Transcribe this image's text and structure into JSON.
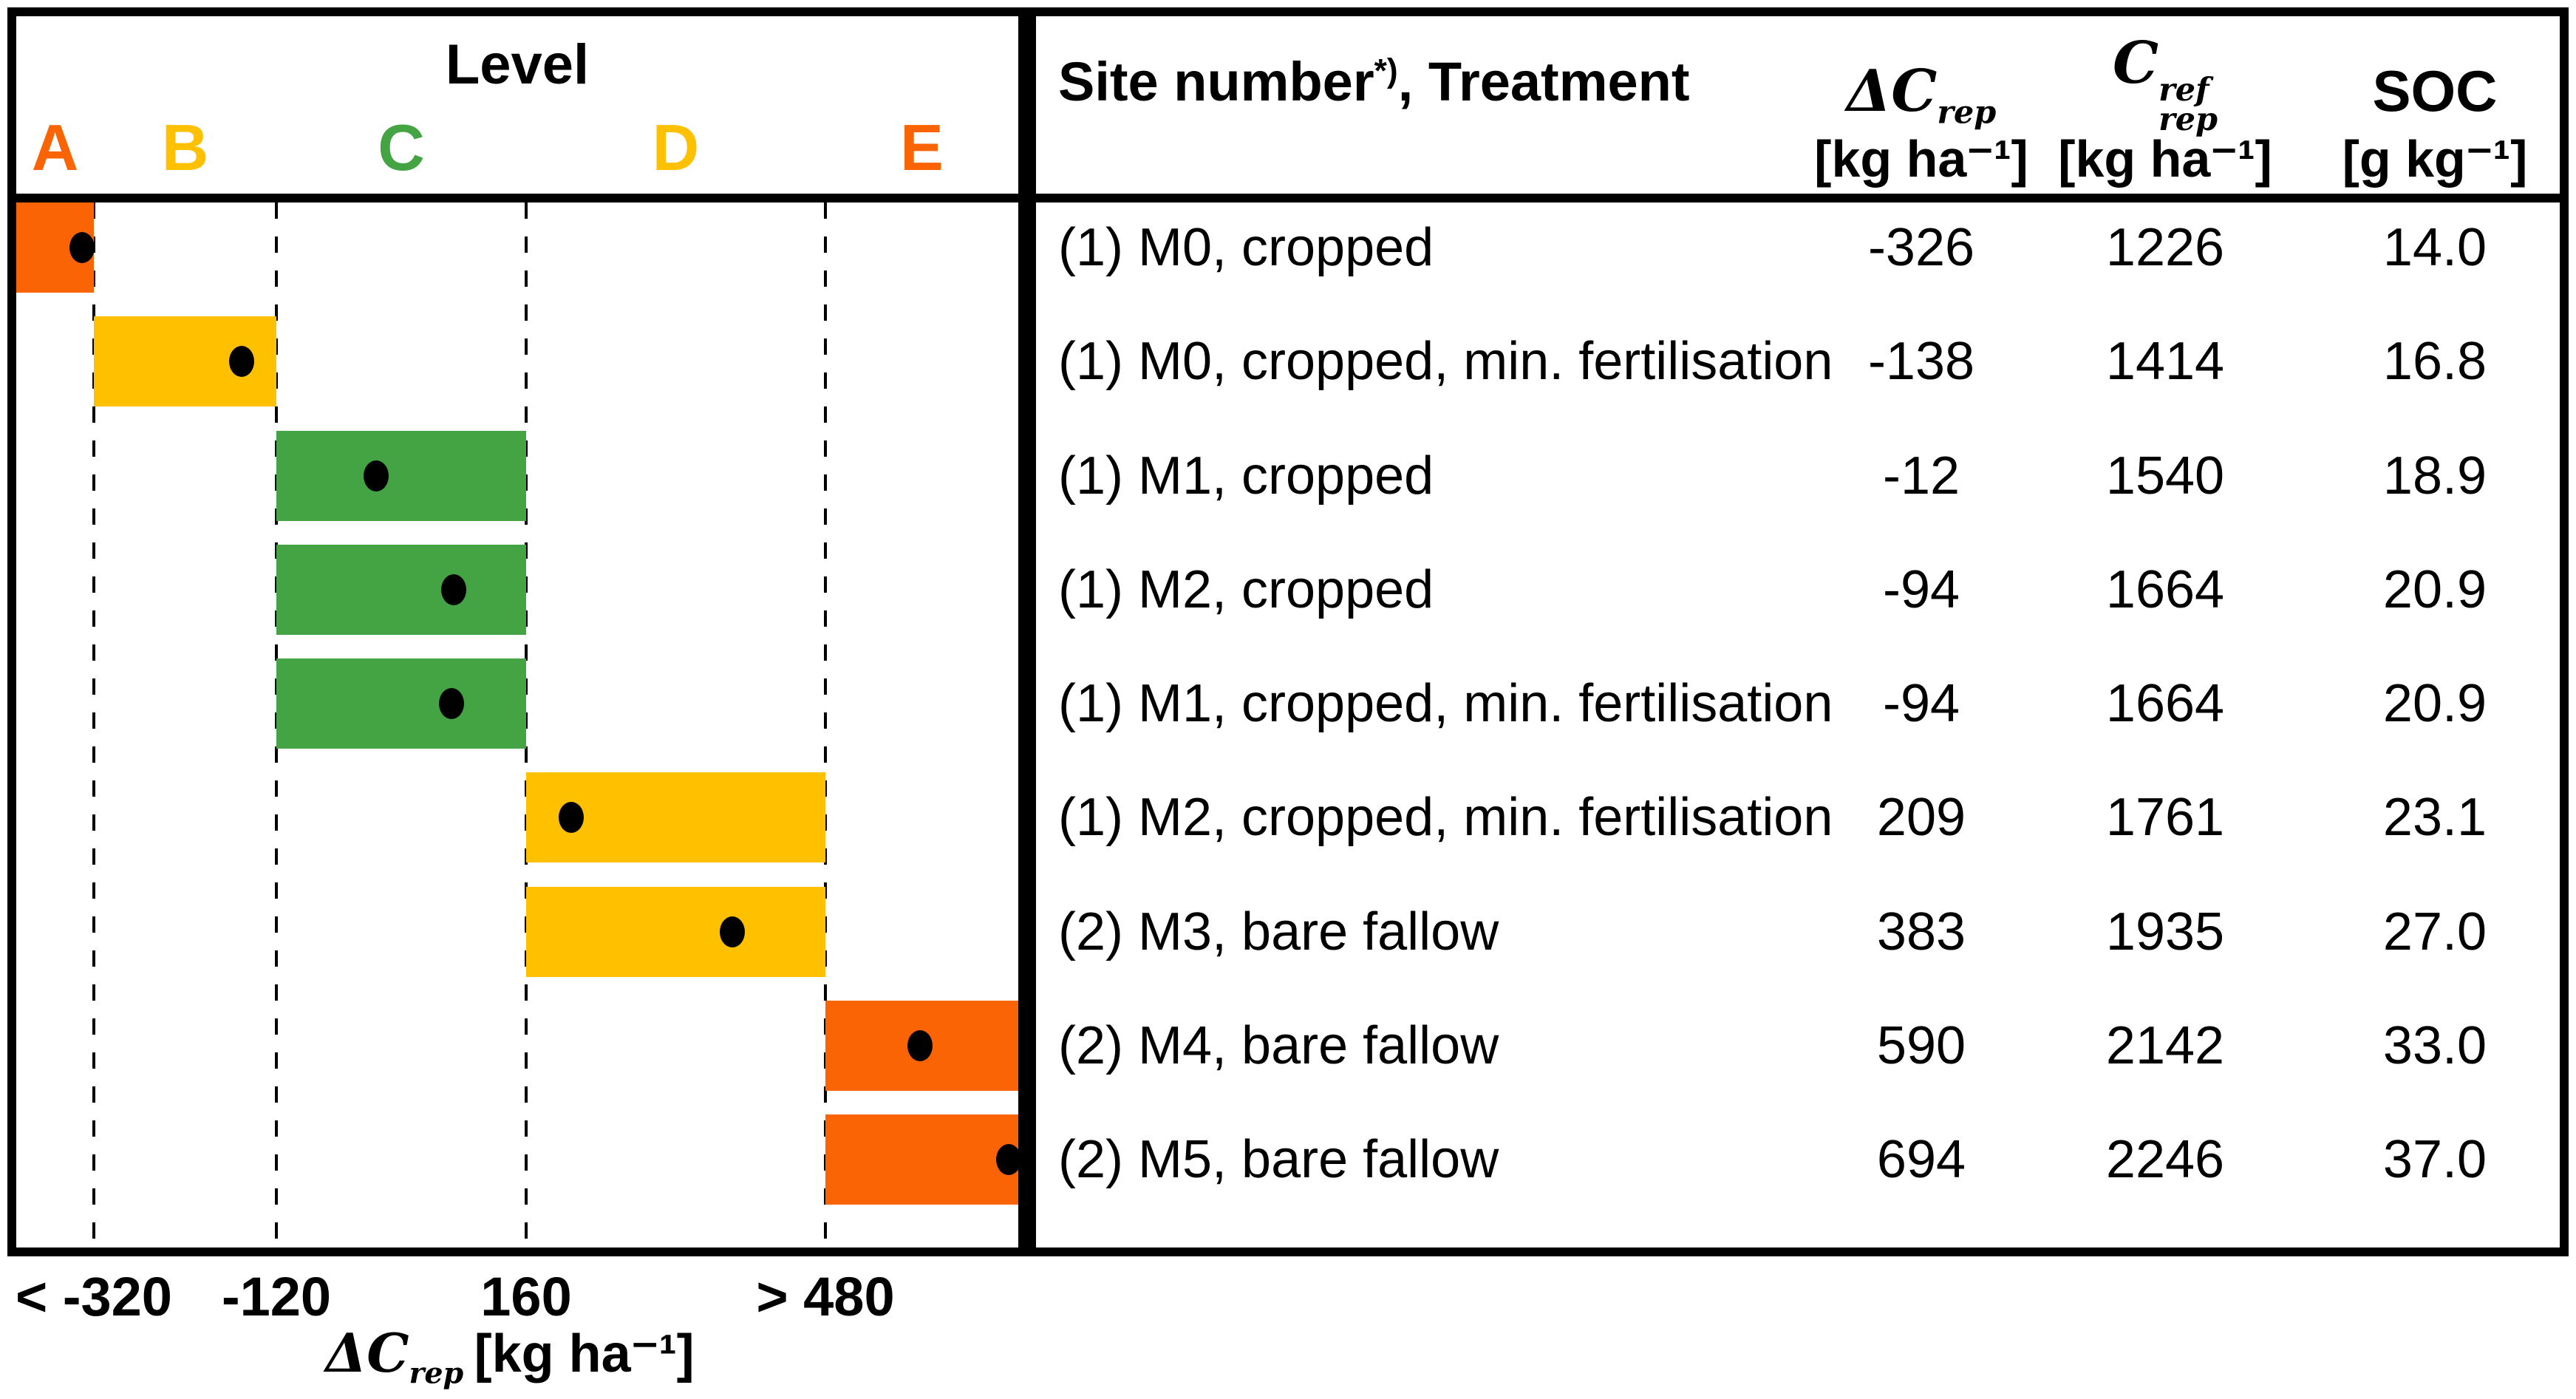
{
  "figure": {
    "left_panel": {
      "header_title": "Level",
      "axis": {
        "tick_labels": [
          "< -320",
          "-120",
          "160",
          "> 480"
        ],
        "title_symbol": "ΔC",
        "title_sub": "rep",
        "title_unit": "[kg ha⁻¹]"
      }
    },
    "table": {
      "header": {
        "col1_main": "Site number",
        "col1_sup": "*)",
        "col1_rest": ", Treatment",
        "col2_symbol": "ΔC",
        "col2_sub": "rep",
        "col2_unit": "[kg ha⁻¹]",
        "col3_symbol": "C",
        "col3_sup": "ref",
        "col3_sub": "rep",
        "col3_unit": "[kg ha⁻¹]",
        "col4_title": "SOC",
        "col4_unit": "[g kg⁻¹]"
      }
    }
  },
  "chart_data": {
    "type": "table",
    "title": "Level classification of treatments by representative carbon flux",
    "x_axis_label": "ΔC_rep [kg ha⁻¹]",
    "level_boundaries_kg_ha": [
      -320,
      -120,
      160,
      480
    ],
    "level_zones": [
      {
        "level": "A",
        "range": "< -320",
        "color": "#FB6404"
      },
      {
        "level": "B",
        "range": "-320 to -120",
        "color": "#FFC000"
      },
      {
        "level": "C",
        "range": "-120 to 160",
        "color": "#44A444"
      },
      {
        "level": "D",
        "range": "160 to 480",
        "color": "#FFC000"
      },
      {
        "level": "E",
        "range": "> 480",
        "color": "#FB6404"
      }
    ],
    "columns": [
      "Site number*), Treatment",
      "ΔC_rep [kg ha⁻¹]",
      "C_rep^ref [kg ha⁻¹]",
      "SOC [g kg⁻¹]"
    ],
    "rows": [
      {
        "treatment": "(1) M0, cropped",
        "delta_c_rep": -326,
        "c_rep_ref": 1226,
        "soc": "14.0",
        "level": "A",
        "dot_frac": 0.85
      },
      {
        "treatment": "(1) M0, cropped, min. fertilisation",
        "delta_c_rep": -138,
        "c_rep_ref": 1414,
        "soc": "16.8",
        "level": "B",
        "dot_frac": 0.81
      },
      {
        "treatment": "(1) M1, cropped",
        "delta_c_rep": -12,
        "c_rep_ref": 1540,
        "soc": "18.9",
        "level": "C",
        "dot_frac": 0.4
      },
      {
        "treatment": "(1) M2, cropped",
        "delta_c_rep": -94,
        "c_rep_ref": 1664,
        "soc": "20.9",
        "level": "C",
        "dot_frac": 0.71
      },
      {
        "treatment": "(1) M1, cropped, min. fertilisation",
        "delta_c_rep": -94,
        "c_rep_ref": 1664,
        "soc": "20.9",
        "level": "C",
        "dot_frac": 0.7
      },
      {
        "treatment": "(1) M2, cropped, min. fertilisation",
        "delta_c_rep": 209,
        "c_rep_ref": 1761,
        "soc": "23.1",
        "level": "D",
        "dot_frac": 0.15
      },
      {
        "treatment": "(2) M3, bare fallow",
        "delta_c_rep": 383,
        "c_rep_ref": 1935,
        "soc": "27.0",
        "level": "D",
        "dot_frac": 0.69
      },
      {
        "treatment": "(2) M4, bare fallow",
        "delta_c_rep": 590,
        "c_rep_ref": 2142,
        "soc": "33.0",
        "level": "E",
        "dot_frac": 0.49
      },
      {
        "treatment": "(2) M5, bare fallow",
        "delta_c_rep": 694,
        "c_rep_ref": 2246,
        "soc": "37.0",
        "level": "E",
        "dot_frac": 0.95
      }
    ]
  }
}
